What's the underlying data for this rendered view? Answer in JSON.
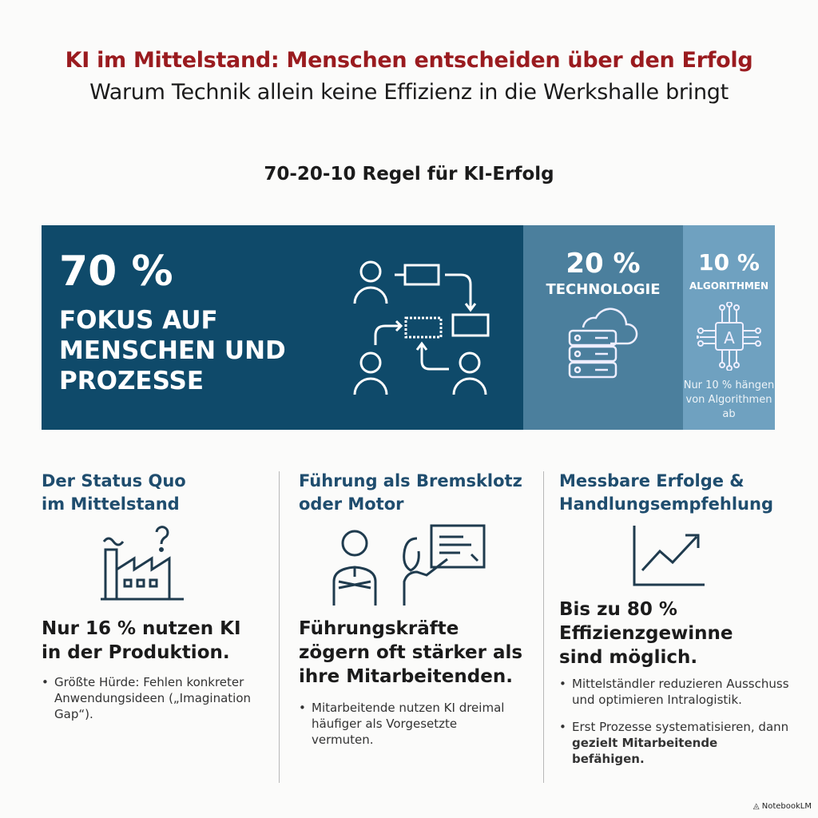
{
  "header": {
    "title": "KI im Mittelstand: Menschen entscheiden über den Erfolg",
    "subtitle": "Warum Technik allein keine Effizienz in die Werkshalle bringt"
  },
  "rule_title": "70-20-10 Regel für KI-Erfolg",
  "banner": {
    "people": {
      "percent": "70 %",
      "label": "FOKUS AUF MENSCHEN UND PROZESSE",
      "icon": "people-process-flow-icon",
      "color": "#0f4a6a",
      "share": 70
    },
    "technology": {
      "percent": "20 %",
      "label": "TECHNOLOGIE",
      "icon": "cloud-server-icon",
      "color": "#4b7f9d",
      "share": 20
    },
    "algorithms": {
      "percent": "10 %",
      "label": "ALGORITHMEN",
      "note": "Nur 10 % hängen von Algorithmen ab",
      "icon": "ai-chip-icon",
      "color": "#6fa1c0",
      "share": 10
    }
  },
  "columns": [
    {
      "heading": "Der Status Quo im Mittelstand",
      "icon": "factory-question-icon",
      "stat": "Nur 16 % nutzen KI in der Produktion.",
      "bullets": [
        "Größte Hürde: Fehlen konkreter Anwendungsideen („Imagination Gap“)."
      ]
    },
    {
      "heading": "Führung als Bremsklotz oder Motor",
      "icon": "leader-presenter-icon",
      "stat": "Führungskräfte zögern oft stärker als ihre Mitarbeitenden.",
      "bullets": [
        "Mitarbeitende nutzen KI dreimal häufiger als Vorgesetzte vermuten."
      ]
    },
    {
      "heading": "Messbare Erfolge & Handlungsempfehlung",
      "icon": "growth-chart-icon",
      "stat": "Bis zu 80 % Effizienzgewinne sind möglich.",
      "bullets": [
        "Mittelständler reduzieren Ausschuss und optimieren Intralogistik."
      ],
      "bullet2_pre": "Erst Prozesse systematisieren, dann ",
      "bullet2_bold": "gezielt Mitarbeitende befähigen."
    }
  ],
  "colors": {
    "title": "#9a1b1f",
    "heading": "#1f4d6e"
  },
  "brand": "NotebookLM"
}
